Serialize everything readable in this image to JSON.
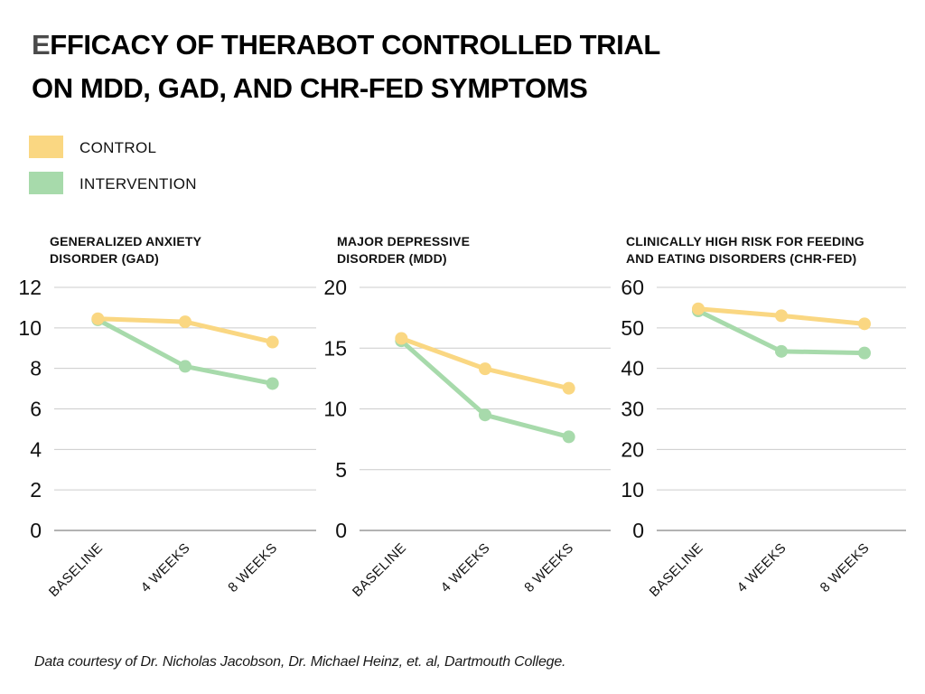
{
  "page": {
    "title_line1": "EFFICACY OF THERABOT CONTROLLED TRIAL",
    "title_line2": "ON MDD, GAD, AND CHR-FED SYMPTOMS",
    "footer": "Data courtesy of Dr. Nicholas Jacobson, Dr. Michael Heinz, et. al, Dartmouth College."
  },
  "colors": {
    "control": "#FAD782",
    "intervention": "#A7DAAB",
    "gridline": "#cccccc",
    "axis_line": "#b3b3b3",
    "text": "#111111"
  },
  "legend": {
    "items": [
      {
        "label": "CONTROL",
        "color": "#FAD782"
      },
      {
        "label": "INTERVENTION",
        "color": "#A7DAAB"
      }
    ]
  },
  "chart_data": [
    {
      "type": "line",
      "title_line1": "GENERALIZED ANXIETY",
      "title_line2": "DISORDER (GAD)",
      "categories": [
        "BASELINE",
        "4 WEEKS",
        "8 WEEKS"
      ],
      "series": [
        {
          "name": "CONTROL",
          "color": "#FAD782",
          "values": [
            10.45,
            10.3,
            9.3
          ]
        },
        {
          "name": "INTERVENTION",
          "color": "#A7DAAB",
          "values": [
            10.4,
            8.1,
            7.25
          ]
        }
      ],
      "ylim": [
        0,
        12
      ],
      "ytick_step": 2,
      "grid": true
    },
    {
      "type": "line",
      "title_line1": "MAJOR DEPRESSIVE",
      "title_line2": "DISORDER (MDD)",
      "categories": [
        "BASELINE",
        "4 WEEKS",
        "8 WEEKS"
      ],
      "series": [
        {
          "name": "CONTROL",
          "color": "#FAD782",
          "values": [
            15.8,
            13.3,
            11.7
          ]
        },
        {
          "name": "INTERVENTION",
          "color": "#A7DAAB",
          "values": [
            15.6,
            9.5,
            7.7
          ]
        }
      ],
      "ylim": [
        0,
        20
      ],
      "ytick_step": 5,
      "grid": true
    },
    {
      "type": "line",
      "title_line1": "CLINICALLY HIGH RISK FOR FEEDING",
      "title_line2": "AND EATING DISORDERS (CHR-FED)",
      "categories": [
        "BASELINE",
        "4 WEEKS",
        "8 WEEKS"
      ],
      "series": [
        {
          "name": "CONTROL",
          "color": "#FAD782",
          "values": [
            54.7,
            53.0,
            51.0
          ]
        },
        {
          "name": "INTERVENTION",
          "color": "#A7DAAB",
          "values": [
            54.2,
            44.2,
            43.8
          ]
        }
      ],
      "ylim": [
        0,
        60
      ],
      "ytick_step": 10,
      "grid": true
    }
  ]
}
